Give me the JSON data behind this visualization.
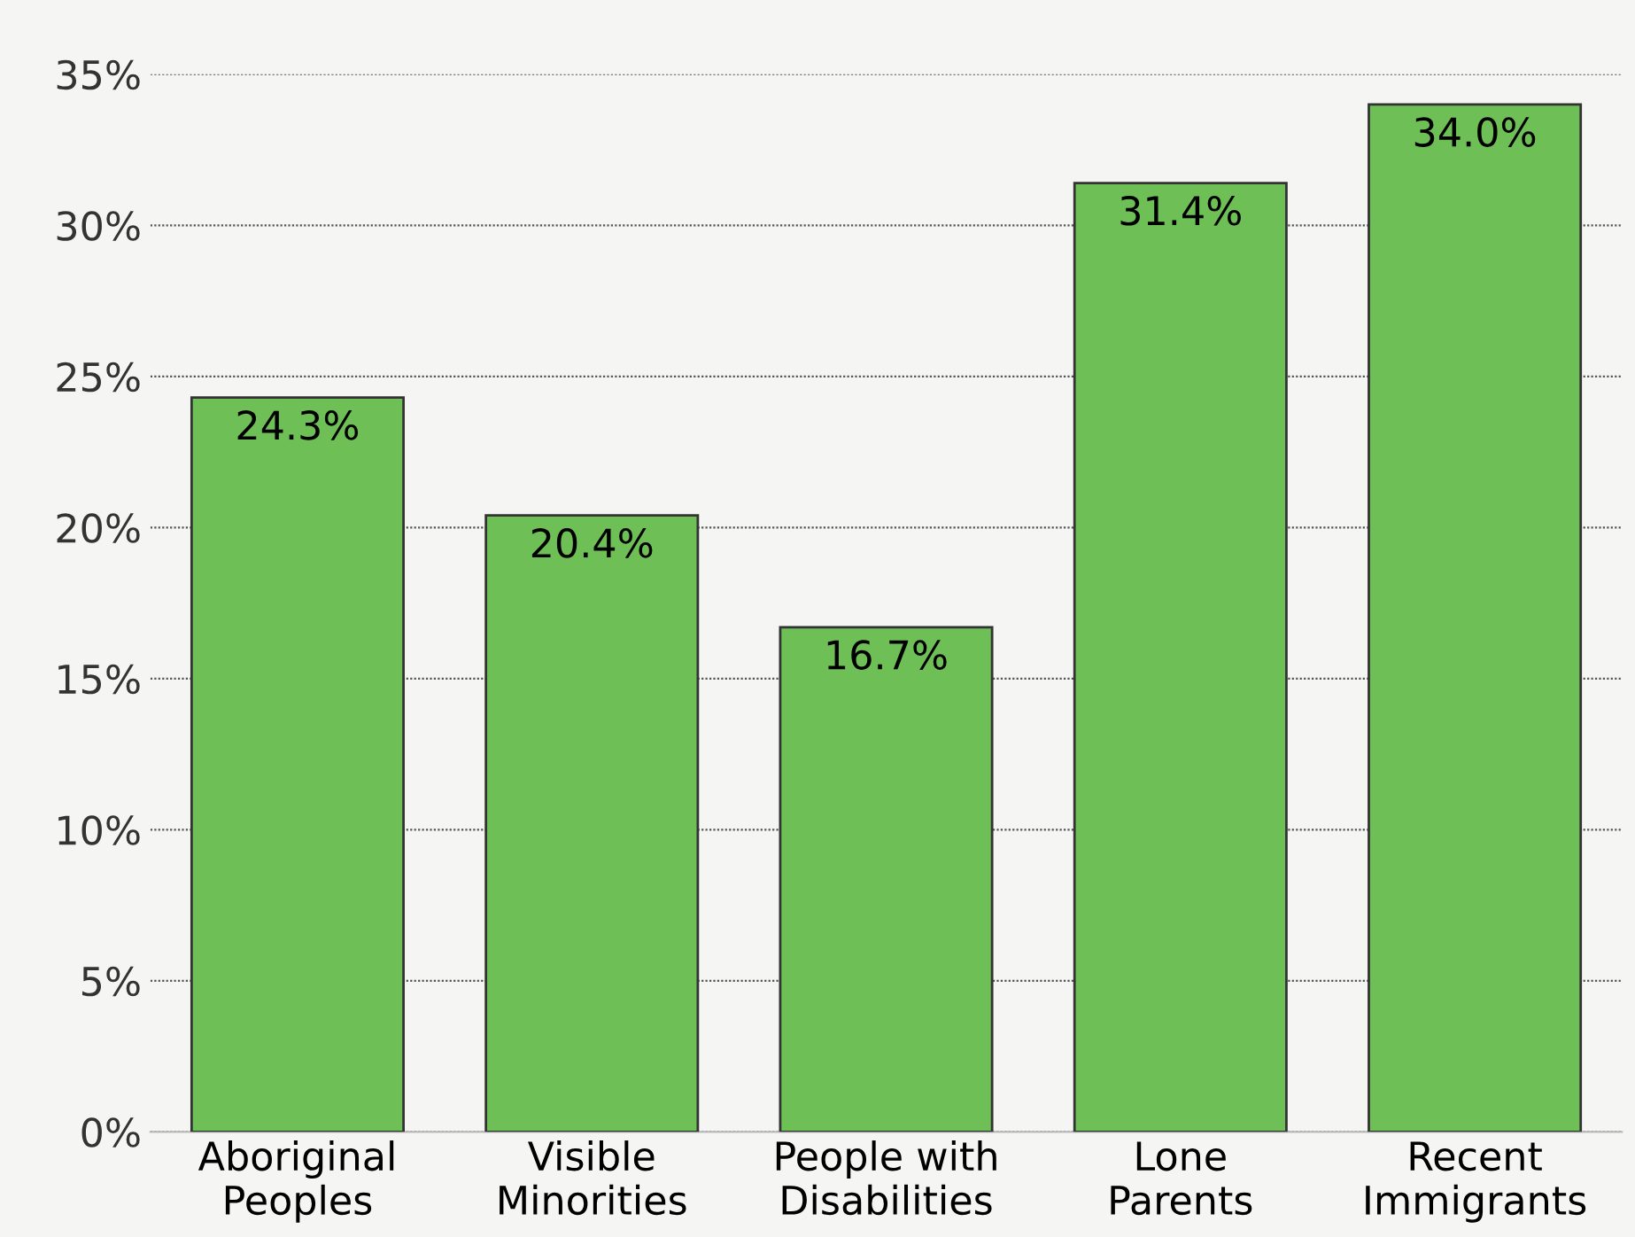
{
  "chart_data": {
    "type": "bar",
    "categories": [
      "Aboriginal\nPeoples",
      "Visible\nMinorities",
      "People with\nDisabilities",
      "Lone\nParents",
      "Recent\nImmigrants"
    ],
    "values": [
      24.3,
      20.4,
      16.7,
      31.4,
      34.0
    ],
    "value_labels": [
      "24.3%",
      "20.4%",
      "16.7%",
      "31.4%",
      "34.0%"
    ],
    "color": "#6dbf56",
    "ylim": [
      0,
      35
    ],
    "yticks": [
      {
        "value": 0,
        "label": "0%"
      },
      {
        "value": 5,
        "label": "5%"
      },
      {
        "value": 10,
        "label": "10%"
      },
      {
        "value": 15,
        "label": "15%"
      },
      {
        "value": 20,
        "label": "20%"
      },
      {
        "value": 25,
        "label": "25%"
      },
      {
        "value": 30,
        "label": "30%"
      },
      {
        "value": 35,
        "label": "35%"
      }
    ],
    "grid": "y",
    "legend": false
  }
}
